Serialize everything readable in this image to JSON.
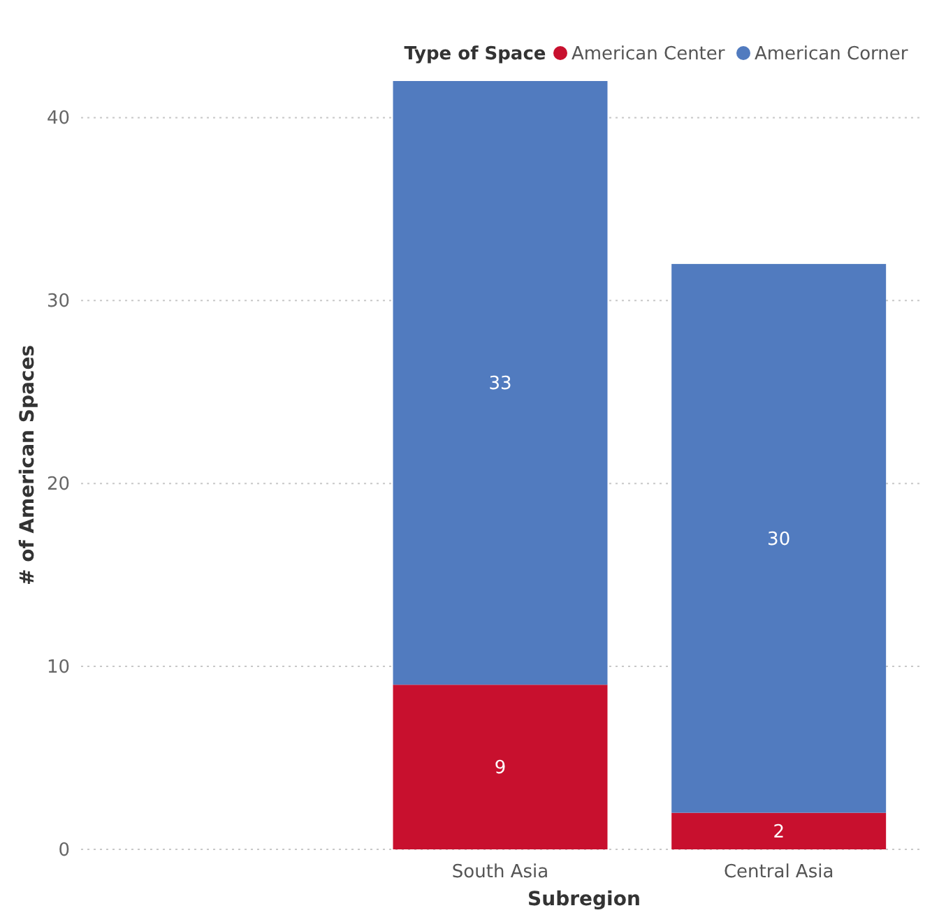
{
  "chart_data": {
    "type": "bar",
    "stacked": true,
    "xlabel": "Subregion",
    "ylabel": "# of American Spaces",
    "legend_title": "Type of Space",
    "legend": "top right",
    "categories": [
      null,
      "South Asia",
      "Central Asia"
    ],
    "series": [
      {
        "name": "American Center",
        "color": "#c8102e",
        "values": [
          null,
          9,
          2
        ]
      },
      {
        "name": "American Corner",
        "color": "#517bbf",
        "values": [
          null,
          33,
          30
        ]
      }
    ],
    "ylim": [
      0,
      42
    ],
    "yticks": [
      0,
      10,
      20,
      30,
      40
    ],
    "grid": "y",
    "data_labels": true
  }
}
